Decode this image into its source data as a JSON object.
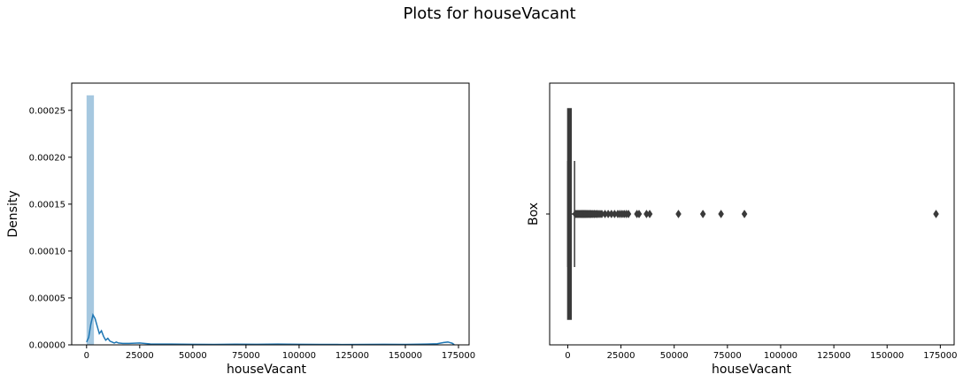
{
  "suptitle": "Plots for houseVacant",
  "colors": {
    "hist_fill": "#a6c8e0",
    "kde_line": "#1f77b4",
    "box": "#3a3a3a",
    "outlier": "#3a3a3a"
  },
  "chart_data": [
    {
      "type": "area",
      "title": "",
      "xlabel": "houseVacant",
      "ylabel": "Density",
      "xlim": [
        -7000,
        180000
      ],
      "ylim": [
        0,
        0.000279
      ],
      "xticks": [
        0,
        25000,
        50000,
        75000,
        100000,
        125000,
        150000,
        175000
      ],
      "yticks": [
        0,
        5e-05,
        0.0001,
        0.00015,
        0.0002,
        0.00025
      ],
      "ytick_labels": [
        "0.00000",
        "0.00005",
        "0.00010",
        "0.00015",
        "0.00020",
        "0.00025"
      ],
      "grid": false,
      "histogram": {
        "bin_edges": [
          0,
          3460
        ],
        "densities": [
          0.000266
        ]
      },
      "kde": {
        "x": [
          0,
          1000,
          2000,
          3000,
          4000,
          5000,
          6000,
          7000,
          8000,
          9000,
          10000,
          11000,
          12000,
          13000,
          14000,
          15000,
          17000,
          20000,
          25000,
          30000,
          40000,
          50000,
          60000,
          70000,
          80000,
          90000,
          100000,
          110000,
          120000,
          130000,
          140000,
          150000,
          160000,
          165000,
          168000,
          170000,
          172000,
          173000
        ],
        "y": [
          3e-06,
          8e-06,
          2.2e-05,
          3.2e-05,
          2.8e-05,
          2e-05,
          1.2e-05,
          1.5e-05,
          9e-06,
          5e-06,
          7e-06,
          4e-06,
          3e-06,
          2e-06,
          3e-06,
          2e-06,
          1.5e-06,
          1.5e-06,
          2e-06,
          1e-06,
          8e-07,
          6e-07,
          5e-07,
          7e-07,
          6e-07,
          8e-07,
          6e-07,
          5e-07,
          4e-07,
          5e-07,
          6e-07,
          5e-07,
          8e-07,
          1.2e-06,
          2.5e-06,
          3e-06,
          1.8e-06,
          2e-07
        ]
      }
    },
    {
      "type": "box",
      "title": "",
      "xlabel": "houseVacant",
      "ylabel": "Box",
      "xlim": [
        -8500,
        181500
      ],
      "xticks": [
        0,
        25000,
        50000,
        75000,
        100000,
        125000,
        150000,
        175000
      ],
      "grid": false,
      "box": {
        "q1": 0,
        "median": 500,
        "q3": 1600,
        "whisker_low": 0,
        "whisker_high": 3200
      },
      "outliers": [
        3500,
        3900,
        4300,
        4700,
        5100,
        5500,
        5900,
        6300,
        6700,
        7100,
        7500,
        7900,
        8300,
        8700,
        9100,
        9500,
        9900,
        10400,
        10900,
        11400,
        11900,
        12500,
        13100,
        13700,
        14400,
        15200,
        16000,
        17500,
        19000,
        20500,
        22000,
        23500,
        24500,
        25500,
        26500,
        27500,
        28500,
        32500,
        33500,
        37000,
        38500,
        52000,
        63500,
        72000,
        83000,
        173000
      ]
    }
  ]
}
